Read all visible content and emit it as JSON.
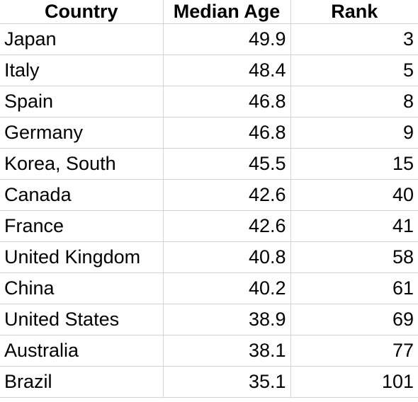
{
  "table": {
    "header": [
      "Country",
      "Median Age",
      "Rank"
    ],
    "rows": [
      [
        "Japan",
        49.9,
        3
      ],
      [
        "Italy",
        48.4,
        5
      ],
      [
        "Spain",
        46.8,
        8
      ],
      [
        "Germany",
        46.8,
        9
      ],
      [
        "Korea, South",
        45.5,
        15
      ],
      [
        "Canada",
        42.6,
        40
      ],
      [
        "France",
        42.6,
        41
      ],
      [
        "United Kingdom",
        40.8,
        58
      ],
      [
        "China",
        40.2,
        61
      ],
      [
        "United States",
        38.9,
        69
      ],
      [
        "Australia",
        38.1,
        77
      ],
      [
        "Brazil",
        35.1,
        101
      ]
    ]
  }
}
